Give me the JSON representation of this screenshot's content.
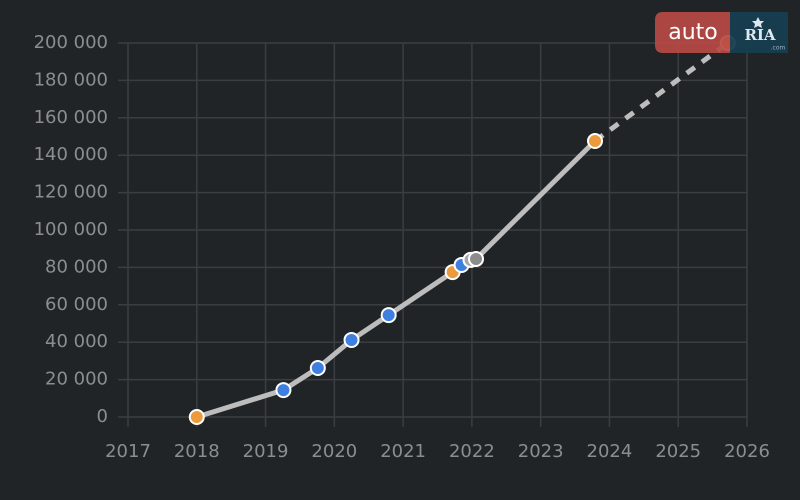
{
  "chart_data": {
    "type": "line",
    "xlim": [
      2017,
      2026
    ],
    "xticks": [
      2017,
      2018,
      2019,
      2020,
      2021,
      2022,
      2023,
      2024,
      2025,
      2026
    ],
    "ylim": [
      0,
      200000
    ],
    "yticks": [
      0,
      {
        "value": 20000,
        "label": "20 000"
      },
      {
        "value": 40000,
        "label": "40 000"
      },
      {
        "value": 60000,
        "label": "60 000"
      },
      {
        "value": 80000,
        "label": "80 000"
      },
      {
        "value": 100000,
        "label": "100 000"
      },
      {
        "value": 120000,
        "label": "120 000"
      },
      {
        "value": 140000,
        "label": "140 000"
      },
      {
        "value": 160000,
        "label": "160 000"
      },
      {
        "value": 180000,
        "label": "180 000"
      },
      {
        "value": 200000,
        "label": "200 000"
      }
    ],
    "grid": true,
    "series": [
      {
        "color": "#bdbdbd",
        "dashed": false,
        "x": [
          2018.0,
          2019.26,
          2019.76,
          2020.25,
          2020.79,
          2021.72,
          2021.85,
          2021.98,
          2022.06,
          2023.79
        ],
        "values": [
          0,
          14400,
          26200,
          41200,
          54500,
          77500,
          81300,
          84000,
          84500,
          147600
        ],
        "markers": [
          true,
          true,
          true,
          true,
          true,
          true,
          true,
          true,
          true,
          true
        ],
        "point_colors": [
          "#eb9a3c",
          "#3f7fe0",
          "#3f7fe0",
          "#3f7fe0",
          "#3f7fe0",
          "#eb9a3c",
          "#3f7fe0",
          "#a8a8a8",
          "#8c8c8c",
          "#eb9a3c"
        ]
      },
      {
        "color": "#bdbdbd",
        "dashed": true,
        "x": [
          2023.79,
          2025.72
        ],
        "values": [
          147600,
          200000
        ],
        "markers": [
          false,
          true
        ],
        "point_colors": [
          "#eb9a3c",
          "#eb9a3c"
        ]
      }
    ]
  },
  "logo": {
    "brand": "auto",
    "mark": "RIA",
    "domain": ".com"
  }
}
